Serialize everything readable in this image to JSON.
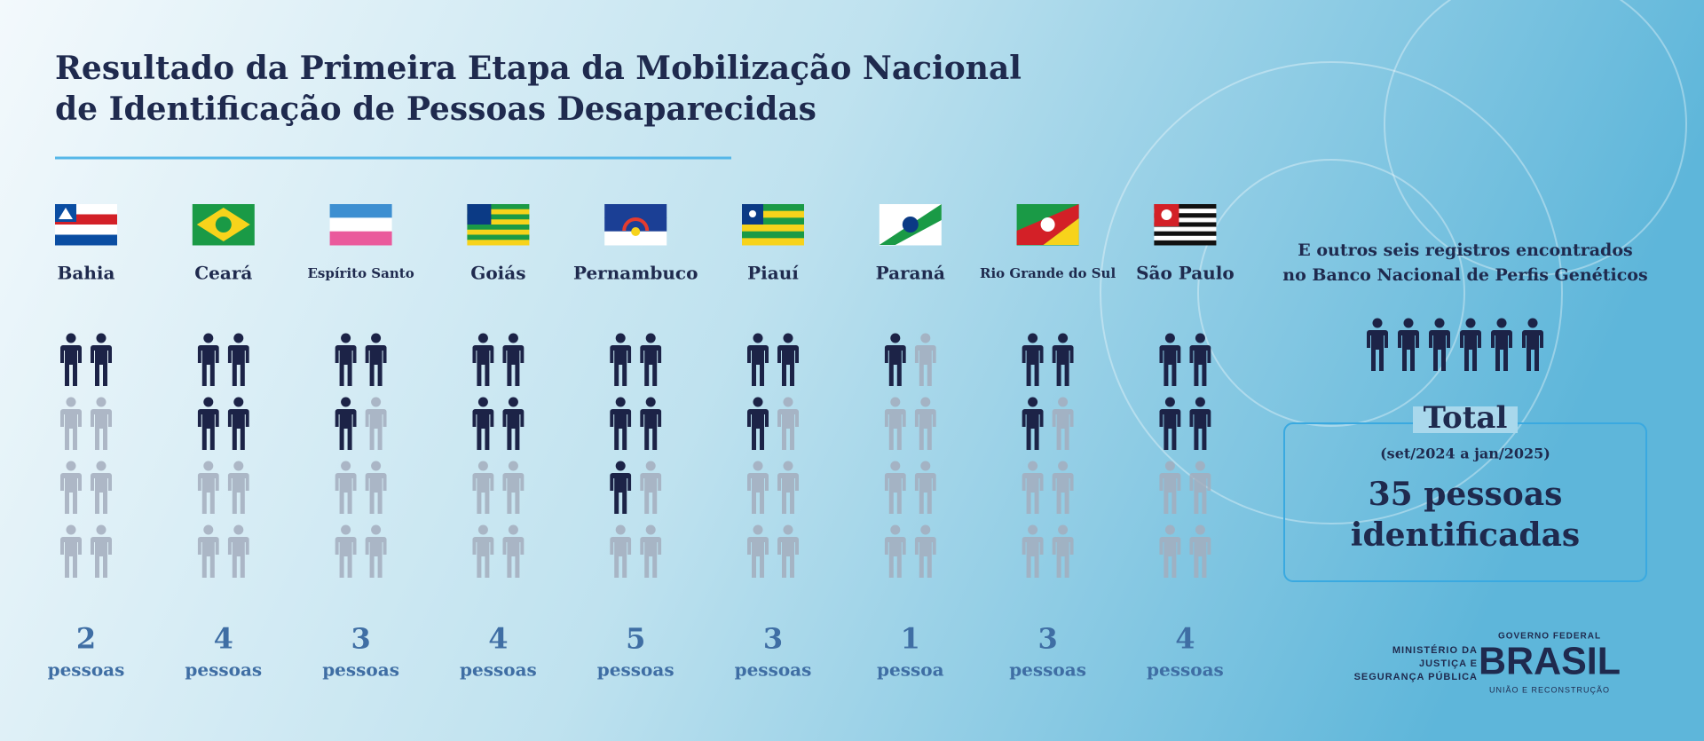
{
  "header": {
    "title_lines": [
      "Resultado da Primeira Etapa da Mobilização Nacional",
      "de Identificação de Pessoas Desaparecidas"
    ]
  },
  "states": [
    {
      "name": "Bahia",
      "count": 2,
      "unit": "pessoas"
    },
    {
      "name": "Ceará",
      "count": 4,
      "unit": "pessoas"
    },
    {
      "name": "Espírito Santo",
      "count": 3,
      "unit": "pessoas"
    },
    {
      "name": "Goiás",
      "count": 4,
      "unit": "pessoas"
    },
    {
      "name": "Pernambuco",
      "count": 5,
      "unit": "pessoas"
    },
    {
      "name": "Piauí",
      "count": 3,
      "unit": "pessoas"
    },
    {
      "name": "Paraná",
      "count": 1,
      "unit": "pessoa"
    },
    {
      "name": "Rio Grande do Sul",
      "count": 3,
      "unit": "pessoas"
    },
    {
      "name": "São Paulo",
      "count": 4,
      "unit": "pessoas"
    }
  ],
  "others": {
    "text_lines": [
      "E outros seis registros encontrados",
      "no Banco Nacional de Perfis Genéticos"
    ],
    "count": 6
  },
  "total": {
    "title": "Total",
    "period": "(set/2024 a jan/2025)",
    "value_lines": [
      "35 pessoas",
      "identificadas"
    ]
  },
  "footer": {
    "ministry_lines": [
      "MINISTÉRIO DA",
      "JUSTIÇA E",
      "SEGURANÇA PÚBLICA"
    ],
    "gov_top": "GOVERNO FEDERAL",
    "gov_name": "BRASIL",
    "gov_slogan": "UNIÃO E RECONSTRUÇÃO"
  }
}
